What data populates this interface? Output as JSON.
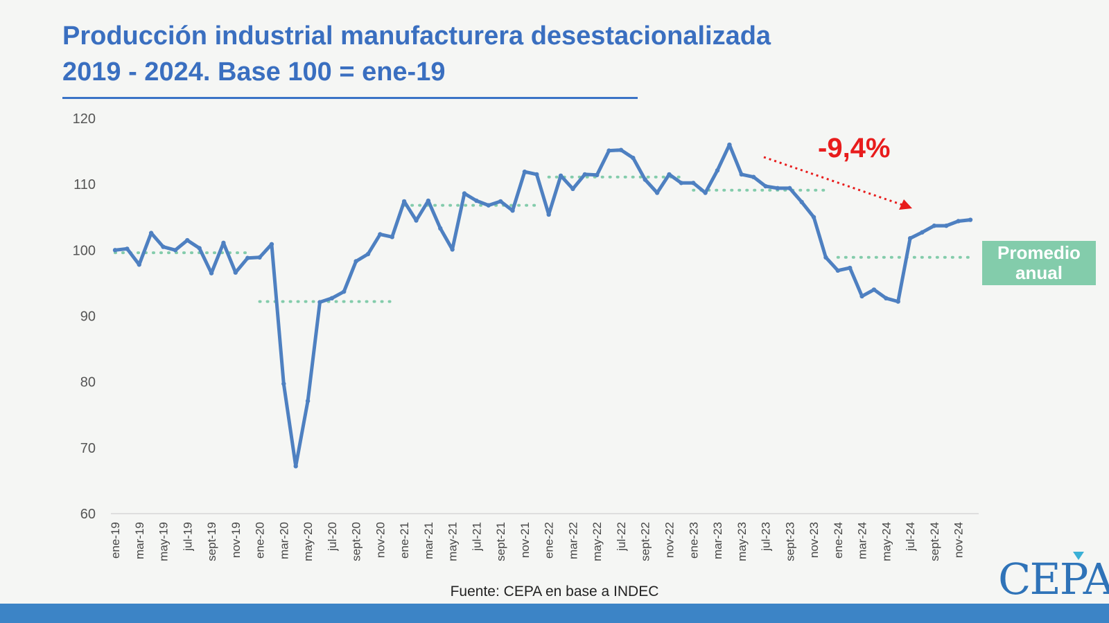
{
  "title": {
    "line1": "Producción industrial manufacturera desestacionalizada",
    "line2": "2019 - 2024. Base 100 = ene-19"
  },
  "change_label": "-9,4%",
  "legend_label": "Promedio anual",
  "source": "Fuente: CEPA en base a INDEC",
  "logo": "CEPA",
  "colors": {
    "line": "#4e80c1",
    "average": "#83ccab",
    "change": "#e81c1c",
    "title": "#3a6fc0"
  },
  "chart_data": {
    "type": "line",
    "ylim": [
      60,
      120
    ],
    "yticks": [
      60,
      70,
      80,
      90,
      100,
      110,
      120
    ],
    "xticklabels": [
      "ene-19",
      "mar-19",
      "may-19",
      "jul-19",
      "sept-19",
      "nov-19",
      "ene-20",
      "mar-20",
      "may-20",
      "jul-20",
      "sept-20",
      "nov-20",
      "ene-21",
      "mar-21",
      "may-21",
      "jul-21",
      "sept-21",
      "nov-21",
      "ene-22",
      "mar-22",
      "may-22",
      "jul-22",
      "sept-22",
      "nov-22",
      "ene-23",
      "mar-23",
      "may-23",
      "jul-23",
      "sept-23",
      "nov-23",
      "ene-24",
      "mar-24",
      "may-24",
      "jul-24",
      "sept-24",
      "nov-24"
    ],
    "series": [
      {
        "values": [
          100,
          100.2,
          97.8,
          102.6,
          100.5,
          100,
          101.5,
          100.3,
          96.5,
          101.1,
          96.6,
          98.8,
          98.9,
          100.9,
          79.7,
          67.2,
          77.1,
          92.1,
          92.7,
          93.7,
          98.3,
          99.4,
          102.4,
          102.0,
          107.4,
          104.5,
          107.5,
          103.3,
          100.1,
          108.6,
          107.5,
          106.8,
          107.4,
          106.0,
          111.9,
          111.5,
          105.4,
          111.3,
          109.3,
          111.5,
          111.4,
          115.1,
          115.2,
          114.0,
          110.7,
          108.7,
          111.5,
          110.2,
          110.2,
          108.7,
          112.1,
          116.0,
          111.5,
          111.1,
          109.7,
          109.4,
          109.4,
          107.3,
          105.0,
          98.9,
          96.9,
          97.3,
          93.0,
          94.0,
          92.7,
          92.2,
          101.8,
          102.7,
          103.7,
          103.7,
          104.4,
          104.6
        ]
      }
    ],
    "annual_averages": [
      {
        "year": "2019",
        "value": 99.6
      },
      {
        "year": "2020",
        "value": 92.2
      },
      {
        "year": "2021",
        "value": 106.8
      },
      {
        "year": "2022",
        "value": 111.1
      },
      {
        "year": "2023",
        "value": 109.1
      },
      {
        "year": "2024",
        "value": 98.9
      }
    ]
  }
}
